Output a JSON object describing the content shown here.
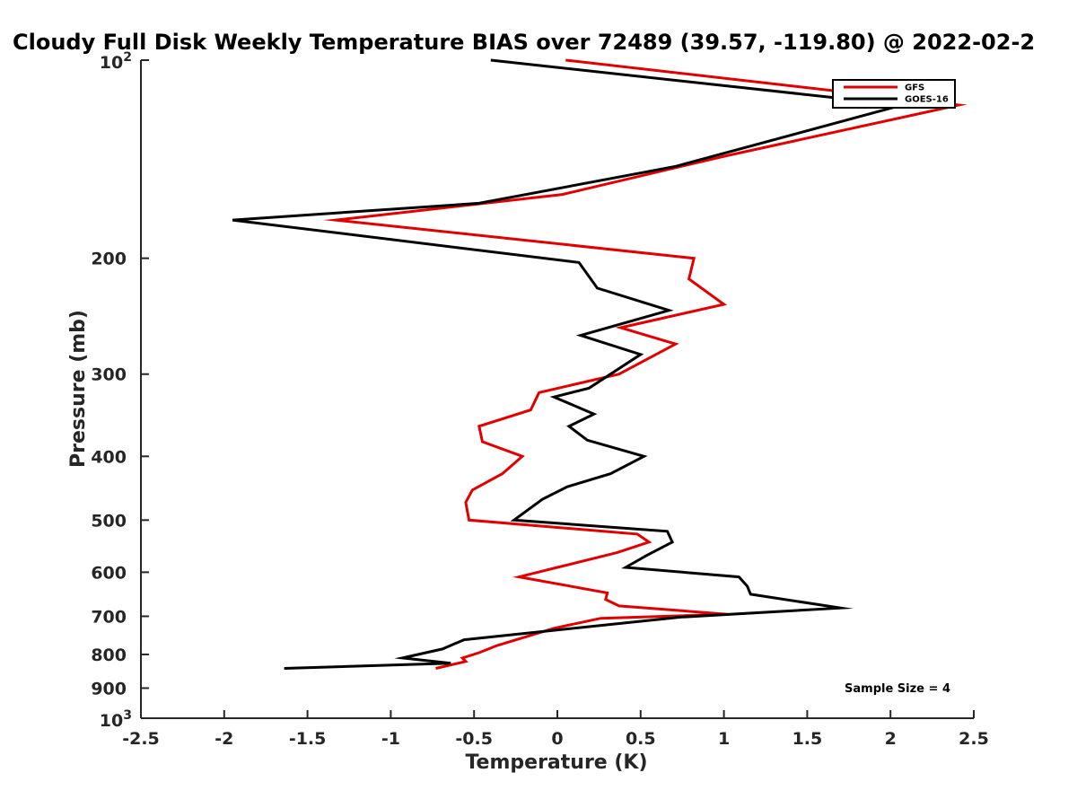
{
  "chart_data": {
    "type": "line",
    "title": "Cloudy Full Disk Weekly Temperature BIAS over 72489 (39.57, -119.80) @ 2022-02-2",
    "xlabel": "Temperature (K)",
    "ylabel": "Pressure (mb)",
    "xlim": [
      -2.5,
      2.5
    ],
    "ylim": [
      100,
      1000
    ],
    "y_scale": "log",
    "y_reversed": true,
    "grid": false,
    "legend_position": "top-right",
    "x_ticks": [
      {
        "value": -2.5,
        "label": "-2.5"
      },
      {
        "value": -2,
        "label": "-2"
      },
      {
        "value": -1.5,
        "label": "-1.5"
      },
      {
        "value": -1,
        "label": "-1"
      },
      {
        "value": -0.5,
        "label": "-0.5"
      },
      {
        "value": 0,
        "label": "0"
      },
      {
        "value": 0.5,
        "label": "0.5"
      },
      {
        "value": 1,
        "label": "1"
      },
      {
        "value": 1.5,
        "label": "1.5"
      },
      {
        "value": 2,
        "label": "2"
      },
      {
        "value": 2.5,
        "label": "2.5"
      }
    ],
    "y_ticks": [
      {
        "value": 100,
        "base": "10",
        "exp": "2"
      },
      {
        "value": 200,
        "label": "200"
      },
      {
        "value": 300,
        "label": "300"
      },
      {
        "value": 400,
        "label": "400"
      },
      {
        "value": 500,
        "label": "500"
      },
      {
        "value": 600,
        "label": "600"
      },
      {
        "value": 700,
        "label": "700"
      },
      {
        "value": 800,
        "label": "800"
      },
      {
        "value": 900,
        "label": "900"
      },
      {
        "value": 1000,
        "base": "10",
        "exp": "3"
      }
    ],
    "series": [
      {
        "name": "GFS",
        "color": "#e00000",
        "points": [
          [
            0.05,
            100
          ],
          [
            2.41,
            117
          ],
          [
            1.0,
            140
          ],
          [
            0.03,
            160
          ],
          [
            -1.33,
            175
          ],
          [
            0.82,
            200
          ],
          [
            0.79,
            215
          ],
          [
            1.0,
            235
          ],
          [
            0.38,
            255
          ],
          [
            0.71,
            270
          ],
          [
            0.37,
            300
          ],
          [
            -0.11,
            320
          ],
          [
            -0.16,
            340
          ],
          [
            -0.47,
            360
          ],
          [
            -0.45,
            380
          ],
          [
            -0.21,
            400
          ],
          [
            -0.33,
            425
          ],
          [
            -0.51,
            450
          ],
          [
            -0.55,
            470
          ],
          [
            -0.53,
            500
          ],
          [
            0.48,
            525
          ],
          [
            0.55,
            540
          ],
          [
            0.36,
            560
          ],
          [
            0.0,
            590
          ],
          [
            -0.23,
            610
          ],
          [
            0.3,
            645
          ],
          [
            0.29,
            660
          ],
          [
            0.37,
            675
          ],
          [
            1.02,
            695
          ],
          [
            0.26,
            705
          ],
          [
            -0.02,
            730
          ],
          [
            -0.36,
            775
          ],
          [
            -0.47,
            795
          ],
          [
            -0.57,
            810
          ],
          [
            -0.55,
            820
          ],
          [
            -0.73,
            840
          ]
        ]
      },
      {
        "name": "GOES-16",
        "color": "#000000",
        "points": [
          [
            -0.4,
            100
          ],
          [
            2.07,
            117
          ],
          [
            0.71,
            145
          ],
          [
            -0.47,
            165
          ],
          [
            -1.95,
            175
          ],
          [
            0.13,
            203
          ],
          [
            0.24,
            222
          ],
          [
            0.67,
            240
          ],
          [
            0.14,
            262
          ],
          [
            0.5,
            280
          ],
          [
            0.19,
            315
          ],
          [
            -0.02,
            325
          ],
          [
            0.22,
            345
          ],
          [
            0.07,
            360
          ],
          [
            0.18,
            378
          ],
          [
            0.52,
            400
          ],
          [
            0.32,
            425
          ],
          [
            0.06,
            445
          ],
          [
            -0.09,
            465
          ],
          [
            -0.26,
            500
          ],
          [
            0.66,
            520
          ],
          [
            0.69,
            540
          ],
          [
            0.54,
            565
          ],
          [
            0.41,
            590
          ],
          [
            1.09,
            610
          ],
          [
            1.14,
            630
          ],
          [
            1.16,
            648
          ],
          [
            1.7,
            680
          ],
          [
            0.74,
            702
          ],
          [
            -0.56,
            760
          ],
          [
            -0.69,
            785
          ],
          [
            -0.93,
            810
          ],
          [
            -0.64,
            825
          ],
          [
            -1.64,
            840
          ]
        ]
      }
    ],
    "annotations": [
      {
        "text": "Sample Size = 4",
        "position": "bottom-right"
      }
    ]
  }
}
